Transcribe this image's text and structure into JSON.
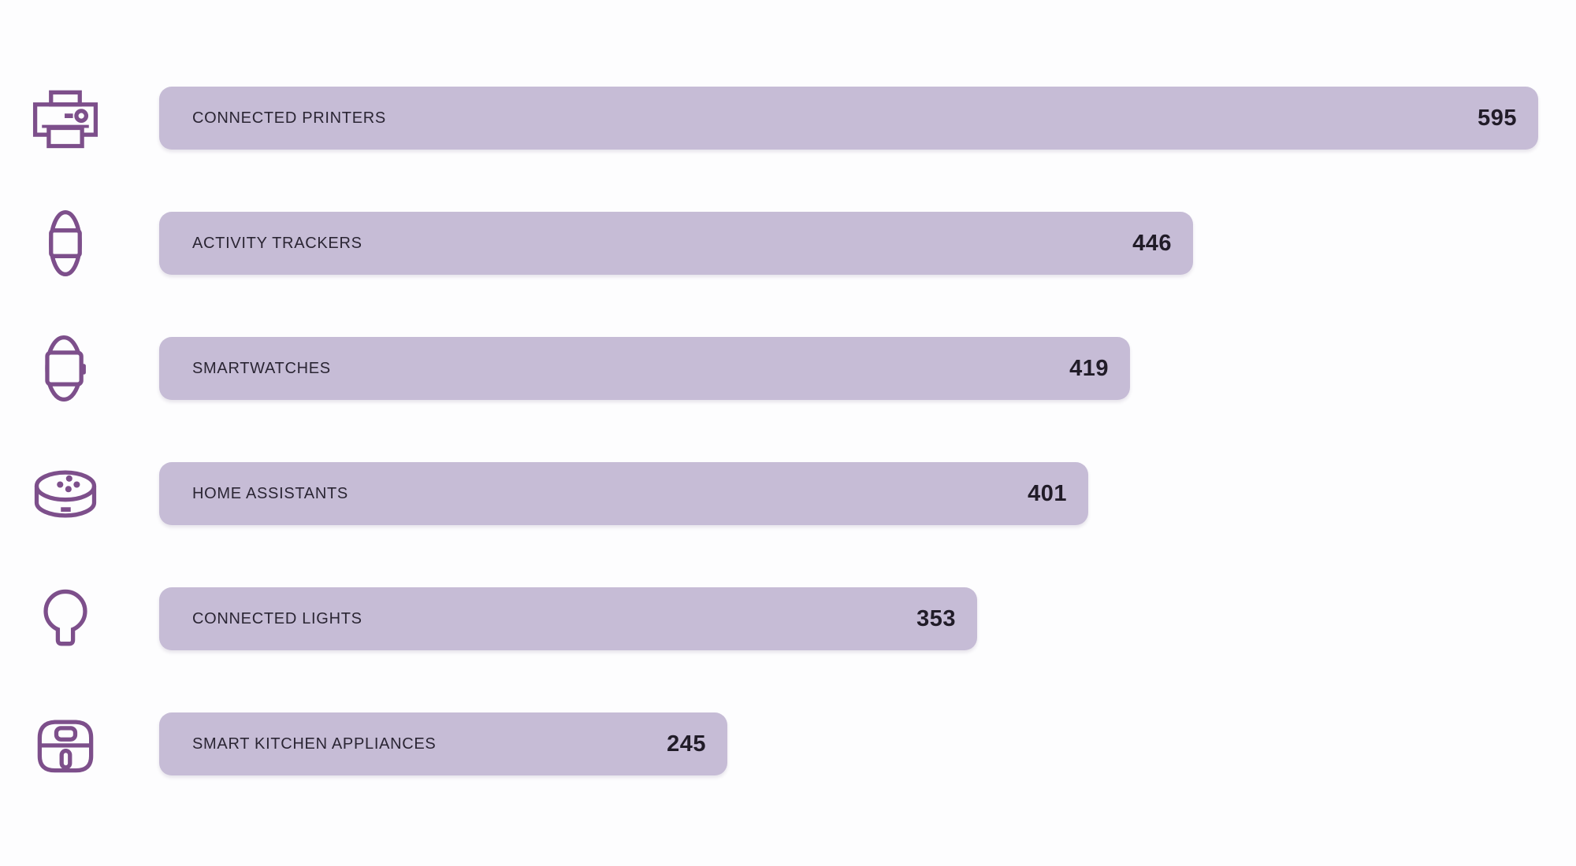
{
  "chart_data": {
    "type": "bar",
    "orientation": "horizontal",
    "title": "",
    "xlabel": "",
    "ylabel": "",
    "categories": [
      "CONNECTED PRINTERS",
      "ACTIVITY TRACKERS",
      "SMARTWATCHES",
      "HOME ASSISTANTS",
      "CONNECTED LIGHTS",
      "SMART KITCHEN APPLIANCES"
    ],
    "values": [
      595,
      446,
      419,
      401,
      353,
      245
    ],
    "icons": [
      "printer-icon",
      "activity-tracker-icon",
      "smartwatch-icon",
      "home-assistant-icon",
      "light-bulb-icon",
      "air-fryer-icon"
    ],
    "xlim": [
      0,
      595
    ],
    "grid": false,
    "legend": false,
    "data_labels": "value at right end inside bar",
    "bar_color": "#c6bcd6",
    "icon_color": "#7d4f8b",
    "label_color": "#2a2533",
    "value_color": "#211c28",
    "background_color": "#fdfdfe"
  },
  "rows": [
    {
      "label": "CONNECTED PRINTERS",
      "value": "595"
    },
    {
      "label": "ACTIVITY TRACKERS",
      "value": "446"
    },
    {
      "label": "SMARTWATCHES",
      "value": "419"
    },
    {
      "label": "HOME ASSISTANTS",
      "value": "401"
    },
    {
      "label": "CONNECTED LIGHTS",
      "value": "353"
    },
    {
      "label": "SMART KITCHEN APPLIANCES",
      "value": "245"
    }
  ]
}
